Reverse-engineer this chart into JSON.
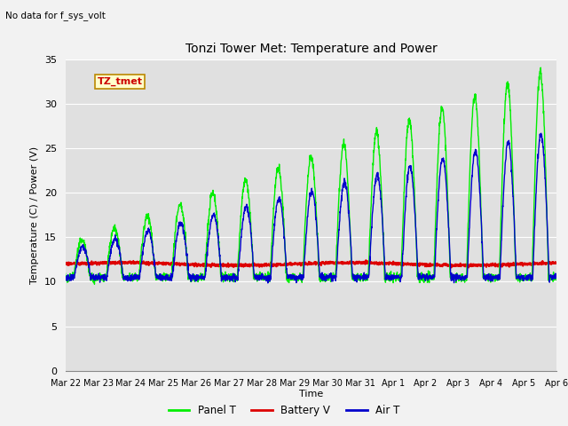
{
  "title": "Tonzi Tower Met: Temperature and Power",
  "no_data_label": "No data for f_sys_volt",
  "ylabel": "Temperature (C) / Power (V)",
  "xlabel": "Time",
  "tag_label": "TZ_tmet",
  "ylim": [
    0,
    35
  ],
  "xlim": [
    0,
    15
  ],
  "xtick_labels": [
    "Mar 22",
    "Mar 23",
    "Mar 24",
    "Mar 25",
    "Mar 26",
    "Mar 27",
    "Mar 28",
    "Mar 29",
    "Mar 30",
    "Mar 31",
    "Apr 1",
    "Apr 2",
    "Apr 3",
    "Apr 4",
    "Apr 5",
    "Apr 6"
  ],
  "legend_entries": [
    "Panel T",
    "Battery V",
    "Air T"
  ],
  "legend_colors": [
    "#00ee00",
    "#dd0000",
    "#0000cc"
  ],
  "fig_bg_color": "#f2f2f2",
  "plot_bg_color": "#e0e0e0",
  "grid_color": "#ffffff",
  "yticks": [
    0,
    5,
    10,
    15,
    20,
    25,
    30,
    35
  ]
}
